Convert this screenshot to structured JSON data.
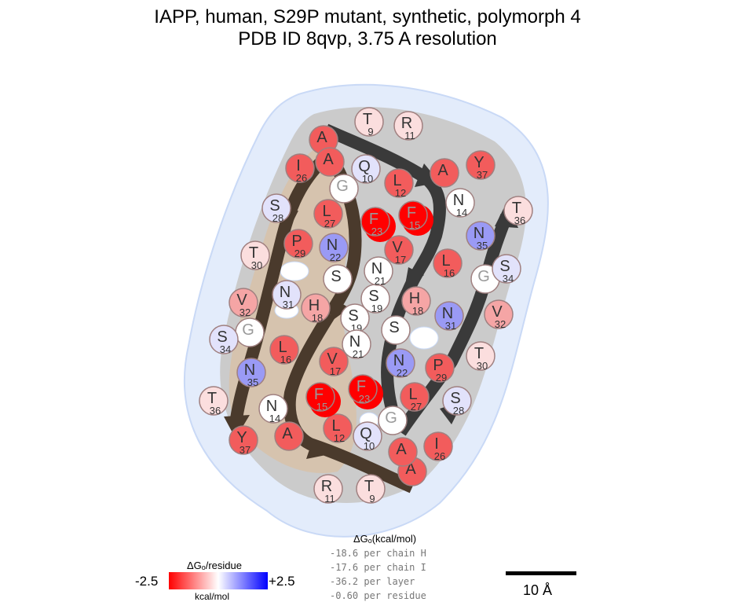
{
  "title": {
    "line1": "IAPP, human, S29P mutant, synthetic, polymorph 4",
    "line2": "PDB ID 8qvp, 3.75 A resolution"
  },
  "colors": {
    "strong_red": "#ff0000",
    "red": "#f25c5c",
    "light_red": "#f5a5a5",
    "pale_red": "#fbdede",
    "white": "#ffffff",
    "pale_blue": "#e2e2fb",
    "blue": "#9a9af5",
    "arrow": "#3a3a3a",
    "arrow_brown": "#4a3a2c",
    "core_tan": "#d6c3ae",
    "halo_blue": "#e3ecfb",
    "core_grey": "#cbcbcb"
  },
  "residues_chain_a": [
    {
      "letter": "A",
      "num": "",
      "color": "red"
    },
    {
      "letter": "A",
      "num": "",
      "color": "red"
    },
    {
      "letter": "T",
      "num": "9",
      "color": "pale_red"
    },
    {
      "letter": "Q",
      "num": "10",
      "color": "pale_blue"
    },
    {
      "letter": "R",
      "num": "11",
      "color": "pale_red"
    },
    {
      "letter": "L",
      "num": "12",
      "color": "red"
    },
    {
      "letter": "A",
      "num": "",
      "color": "red"
    },
    {
      "letter": "N",
      "num": "14",
      "color": "white"
    },
    {
      "letter": "F",
      "num": "15",
      "color": "strong_red"
    },
    {
      "letter": "L",
      "num": "16",
      "color": "red"
    },
    {
      "letter": "V",
      "num": "17",
      "color": "red"
    },
    {
      "letter": "H",
      "num": "18",
      "color": "light_red"
    },
    {
      "letter": "S",
      "num": "19",
      "color": "white"
    },
    {
      "letter": "S",
      "num": "",
      "color": "white"
    },
    {
      "letter": "N",
      "num": "21",
      "color": "white"
    },
    {
      "letter": "N",
      "num": "22",
      "color": "blue"
    },
    {
      "letter": "F",
      "num": "23",
      "color": "strong_red"
    },
    {
      "letter": "G",
      "num": "",
      "color": "white"
    },
    {
      "letter": "I",
      "num": "26",
      "color": "red"
    },
    {
      "letter": "L",
      "num": "27",
      "color": "red"
    },
    {
      "letter": "S",
      "num": "28",
      "color": "pale_blue"
    },
    {
      "letter": "P",
      "num": "29",
      "color": "red"
    },
    {
      "letter": "T",
      "num": "30",
      "color": "pale_red"
    },
    {
      "letter": "N",
      "num": "31",
      "color": "pale_blue"
    },
    {
      "letter": "V",
      "num": "32",
      "color": "light_red"
    },
    {
      "letter": "G",
      "num": "",
      "color": "white"
    },
    {
      "letter": "S",
      "num": "34",
      "color": "pale_blue"
    },
    {
      "letter": "N",
      "num": "35",
      "color": "blue"
    },
    {
      "letter": "T",
      "num": "36",
      "color": "pale_red"
    },
    {
      "letter": "Y",
      "num": "37",
      "color": "red"
    }
  ],
  "residues_chain_b": [
    {
      "letter": "A",
      "num": "",
      "color": "red"
    },
    {
      "letter": "A",
      "num": "",
      "color": "red"
    },
    {
      "letter": "T",
      "num": "9",
      "color": "pale_red"
    },
    {
      "letter": "Q",
      "num": "10",
      "color": "pale_blue"
    },
    {
      "letter": "R",
      "num": "11",
      "color": "pale_red"
    },
    {
      "letter": "L",
      "num": "12",
      "color": "red"
    },
    {
      "letter": "A",
      "num": "",
      "color": "red"
    },
    {
      "letter": "N",
      "num": "14",
      "color": "white"
    },
    {
      "letter": "F",
      "num": "15",
      "color": "strong_red"
    },
    {
      "letter": "L",
      "num": "16",
      "color": "red"
    },
    {
      "letter": "V",
      "num": "17",
      "color": "red"
    },
    {
      "letter": "H",
      "num": "18",
      "color": "light_red"
    },
    {
      "letter": "S",
      "num": "19",
      "color": "white"
    },
    {
      "letter": "S",
      "num": "",
      "color": "white"
    },
    {
      "letter": "N",
      "num": "21",
      "color": "white"
    },
    {
      "letter": "N",
      "num": "22",
      "color": "blue"
    },
    {
      "letter": "F",
      "num": "23",
      "color": "strong_red"
    },
    {
      "letter": "G",
      "num": "",
      "color": "white"
    },
    {
      "letter": "I",
      "num": "26",
      "color": "red"
    },
    {
      "letter": "L",
      "num": "27",
      "color": "red"
    },
    {
      "letter": "S",
      "num": "28",
      "color": "pale_blue"
    },
    {
      "letter": "P",
      "num": "29",
      "color": "red"
    },
    {
      "letter": "T",
      "num": "30",
      "color": "pale_red"
    },
    {
      "letter": "N",
      "num": "31",
      "color": "blue"
    },
    {
      "letter": "V",
      "num": "32",
      "color": "light_red"
    },
    {
      "letter": "G",
      "num": "",
      "color": "white"
    },
    {
      "letter": "S",
      "num": "34",
      "color": "pale_blue"
    },
    {
      "letter": "N",
      "num": "35",
      "color": "blue"
    },
    {
      "letter": "T",
      "num": "36",
      "color": "pale_red"
    },
    {
      "letter": "Y",
      "num": "37",
      "color": "red"
    }
  ],
  "legend": {
    "title": "ΔGₒ/residue",
    "min_label": "-2.5",
    "max_label": "+2.5",
    "unit": "kcal/mol"
  },
  "energies": {
    "header": "ΔGₒ(kcal/mol)",
    "lines": [
      "-18.6 per chain H",
      "-17.6 per chain I",
      "-36.2 per layer",
      "-0.60 per residue"
    ]
  },
  "scale_bar": {
    "label": "10 Å"
  }
}
